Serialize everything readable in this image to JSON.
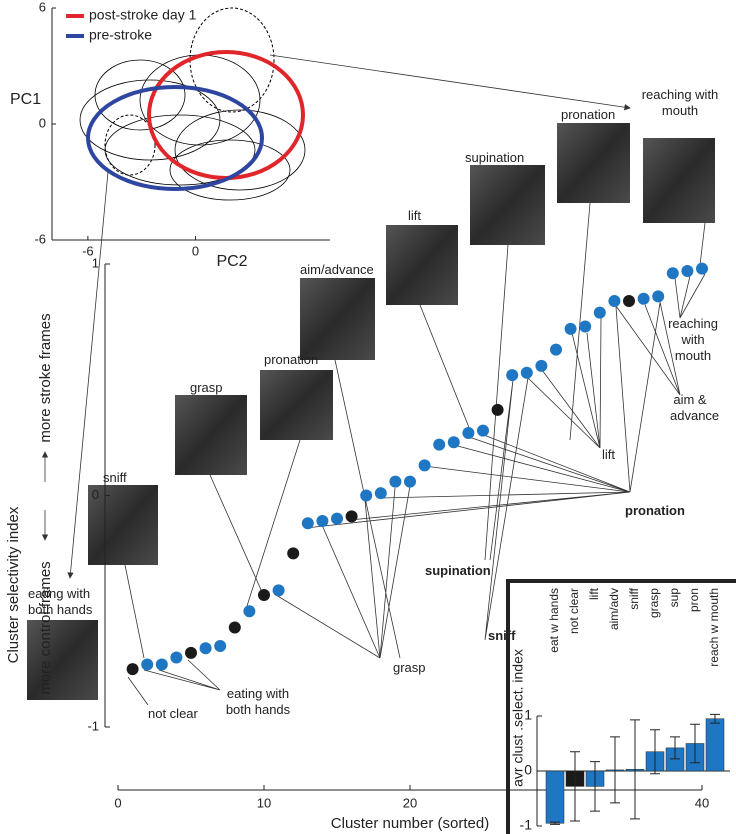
{
  "chart_data": [
    {
      "type": "scatter",
      "xlabel": "Cluster number (sorted)",
      "ylabel": "Cluster selectivity index",
      "ylabel_up": "more stroke frames",
      "ylabel_down": "more control frames",
      "xlim": [
        0,
        40
      ],
      "xticks": [
        0,
        10,
        20,
        30,
        40
      ],
      "ylim": [
        -1,
        1
      ],
      "yticks": [
        -1,
        0,
        1
      ],
      "series": [
        {
          "color": "#1f77c4",
          "x": [
            2,
            3,
            4,
            6,
            7,
            9,
            11,
            13,
            14,
            15,
            17,
            18,
            19,
            20,
            21,
            22,
            23,
            24,
            25,
            27,
            28,
            29,
            30,
            31,
            32,
            33,
            34,
            36,
            37,
            38,
            39,
            40
          ],
          "values": [
            -0.73,
            -0.73,
            -0.7,
            -0.66,
            -0.65,
            -0.5,
            -0.41,
            -0.12,
            -0.11,
            -0.1,
            0.0,
            0.01,
            0.06,
            0.06,
            0.13,
            0.22,
            0.23,
            0.27,
            0.28,
            0.52,
            0.53,
            0.56,
            0.63,
            0.72,
            0.73,
            0.79,
            0.84,
            0.85,
            0.86,
            0.96,
            0.97,
            0.98
          ]
        },
        {
          "color": "#1a1a1a",
          "x": [
            1,
            5,
            8,
            10,
            12,
            16,
            26,
            35
          ],
          "values": [
            -0.75,
            -0.68,
            -0.57,
            -0.43,
            -0.25,
            -0.09,
            0.37,
            0.84
          ]
        }
      ],
      "image_labels": [
        "eating with both hands",
        "sniff",
        "grasp",
        "pronation",
        "aim/advance",
        "lift",
        "supination",
        "pronation",
        "reaching with mouth"
      ],
      "annotations": [
        "not clear",
        "eating with both hands",
        "grasp",
        "sniff",
        "supination",
        "pronation",
        "lift",
        "aim & advance",
        "reaching with mouth"
      ]
    },
    {
      "type": "bar",
      "ylabel": "avr clust .select. index",
      "categories": [
        "eat w hands",
        "not clear",
        "lift",
        "aim/adv",
        "sniff",
        "grasp",
        "sup",
        "pron",
        "reach w mouth"
      ],
      "values": [
        -0.95,
        -0.28,
        -0.28,
        0.02,
        0.03,
        0.35,
        0.42,
        0.5,
        0.95
      ],
      "errors": [
        0.02,
        0.63,
        0.45,
        0.6,
        0.9,
        0.4,
        0.2,
        0.35,
        0.08
      ],
      "colors": [
        "#1f77c4",
        "#1a1a1a",
        "#1f77c4",
        "#1f77c4",
        "#1f77c4",
        "#1f77c4",
        "#1f77c4",
        "#1f77c4",
        "#1f77c4"
      ],
      "ylim": [
        -1,
        1
      ],
      "yticks": [
        -1,
        0,
        1
      ]
    },
    {
      "type": "ellipse",
      "xlabel": "PC2",
      "ylabel": "PC1",
      "xlim": [
        -8,
        7.5
      ],
      "xticks": [
        -6,
        0
      ],
      "ylim": [
        -6,
        6
      ],
      "yticks": [
        -6,
        0,
        6
      ],
      "series": [
        {
          "name": "post-stroke day 1",
          "color": "#e0262a"
        },
        {
          "name": "pre-stroke",
          "color": "#2e46a0"
        }
      ]
    }
  ]
}
